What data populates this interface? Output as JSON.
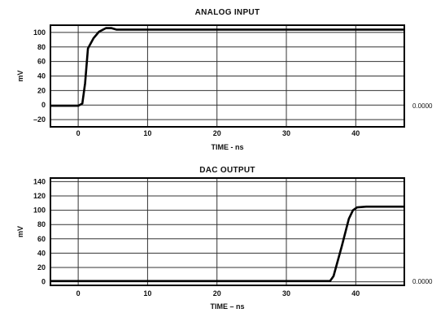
{
  "chart_data": [
    {
      "type": "line",
      "title": "ANALOG INPUT",
      "xlabel": "TIME - ns",
      "ylabel": "mV",
      "xlim": [
        -4,
        47
      ],
      "ylim": [
        -30,
        110
      ],
      "xticks": [
        0,
        10,
        20,
        30,
        40
      ],
      "yticks": [
        -20,
        0,
        20,
        40,
        60,
        80,
        100
      ],
      "grid": true,
      "side_label": "0.0000",
      "series": [
        {
          "x": [
            -4,
            0,
            0.6,
            1.0,
            1.4,
            2.2,
            3.0,
            4.0,
            4.8,
            5.5,
            47
          ],
          "y": [
            -1,
            -1,
            2,
            30,
            78,
            92,
            101,
            106,
            106,
            104,
            104
          ]
        }
      ]
    },
    {
      "type": "line",
      "title": "DAC OUTPUT",
      "xlabel": "TIME – ns",
      "ylabel": "mV",
      "xlim": [
        -4,
        47
      ],
      "ylim": [
        -5,
        145
      ],
      "xticks": [
        0,
        10,
        20,
        30,
        40
      ],
      "yticks": [
        0,
        20,
        40,
        60,
        80,
        100,
        120,
        140
      ],
      "grid": true,
      "side_label": "0.0000",
      "series": [
        {
          "x": [
            -4,
            36.3,
            36.8,
            38.0,
            39.0,
            39.6,
            40.2,
            41.5,
            47
          ],
          "y": [
            1,
            1,
            8,
            50,
            88,
            100,
            104,
            105,
            105
          ]
        }
      ]
    }
  ]
}
